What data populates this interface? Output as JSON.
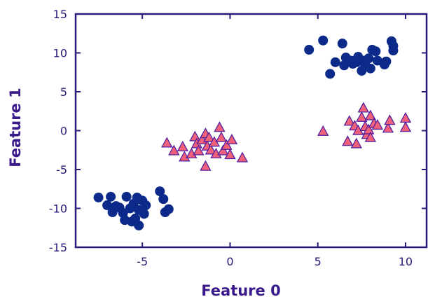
{
  "chart_data": {
    "type": "scatter",
    "title": "",
    "xlabel": "Feature 0",
    "ylabel": "Feature 1",
    "xlim": [
      -8.8,
      11.2
    ],
    "ylim": [
      -15,
      15
    ],
    "xticks": [
      -5,
      0,
      5,
      10
    ],
    "yticks": [
      -15,
      -10,
      -5,
      0,
      5,
      10,
      15
    ],
    "grid": false,
    "legend": "none",
    "series": [
      {
        "marker": "circle",
        "color": "#0b2a8a",
        "points": [
          [
            -7.5,
            -8.6
          ],
          [
            -7.0,
            -9.6
          ],
          [
            -6.8,
            -8.5
          ],
          [
            -6.7,
            -10.5
          ],
          [
            -6.5,
            -9.7
          ],
          [
            -6.3,
            -9.9
          ],
          [
            -6.1,
            -10.6
          ],
          [
            -6.0,
            -11.5
          ],
          [
            -5.9,
            -8.5
          ],
          [
            -5.7,
            -10.0
          ],
          [
            -5.6,
            -11.7
          ],
          [
            -5.5,
            -9.4
          ],
          [
            -5.4,
            -11.3
          ],
          [
            -5.3,
            -8.6
          ],
          [
            -5.2,
            -12.2
          ],
          [
            -5.2,
            -10.2
          ],
          [
            -5.0,
            -9.0
          ],
          [
            -4.9,
            -10.7
          ],
          [
            -4.8,
            -9.6
          ],
          [
            -4.0,
            -7.8
          ],
          [
            -3.8,
            -8.8
          ],
          [
            -3.7,
            -10.5
          ],
          [
            -3.5,
            -10.1
          ],
          [
            4.5,
            10.4
          ],
          [
            5.3,
            11.6
          ],
          [
            5.7,
            7.3
          ],
          [
            6.0,
            8.8
          ],
          [
            6.4,
            11.2
          ],
          [
            6.5,
            8.4
          ],
          [
            6.6,
            9.4
          ],
          [
            6.9,
            9.0
          ],
          [
            7.0,
            8.6
          ],
          [
            7.2,
            8.8
          ],
          [
            7.3,
            9.5
          ],
          [
            7.5,
            7.7
          ],
          [
            7.6,
            9.0
          ],
          [
            7.7,
            8.4
          ],
          [
            7.9,
            9.3
          ],
          [
            8.0,
            8.0
          ],
          [
            8.1,
            10.4
          ],
          [
            8.3,
            10.2
          ],
          [
            8.4,
            9.0
          ],
          [
            8.8,
            8.5
          ],
          [
            8.9,
            8.9
          ],
          [
            9.2,
            11.5
          ],
          [
            9.3,
            10.9
          ],
          [
            9.3,
            10.3
          ]
        ]
      },
      {
        "marker": "triangle",
        "color": "#f0607a",
        "stroke": "#4a1aa0",
        "points": [
          [
            -3.6,
            -1.6
          ],
          [
            -3.2,
            -2.6
          ],
          [
            -2.7,
            -2.1
          ],
          [
            -2.6,
            -3.4
          ],
          [
            -2.2,
            -3.0
          ],
          [
            -2.0,
            -0.8
          ],
          [
            -1.9,
            -1.7
          ],
          [
            -1.8,
            -2.6
          ],
          [
            -1.6,
            -1.2
          ],
          [
            -1.4,
            -0.4
          ],
          [
            -1.4,
            -4.6
          ],
          [
            -1.3,
            -2.0
          ],
          [
            -1.2,
            -0.9
          ],
          [
            -1.1,
            -2.5
          ],
          [
            -0.9,
            -1.5
          ],
          [
            -0.8,
            -3.0
          ],
          [
            -0.6,
            0.4
          ],
          [
            -0.5,
            -0.9
          ],
          [
            -0.4,
            -2.6
          ],
          [
            -0.2,
            -1.9
          ],
          [
            0.0,
            -3.1
          ],
          [
            0.1,
            -1.2
          ],
          [
            0.7,
            -3.5
          ],
          [
            5.3,
            -0.1
          ],
          [
            6.7,
            -1.4
          ],
          [
            6.8,
            1.2
          ],
          [
            7.1,
            0.6
          ],
          [
            7.2,
            -1.7
          ],
          [
            7.3,
            0.0
          ],
          [
            7.5,
            1.7
          ],
          [
            7.6,
            2.9
          ],
          [
            7.7,
            0.5
          ],
          [
            7.8,
            -0.5
          ],
          [
            7.9,
            0.1
          ],
          [
            8.0,
            1.9
          ],
          [
            8.0,
            -0.9
          ],
          [
            8.2,
            0.9
          ],
          [
            8.4,
            0.7
          ],
          [
            9.0,
            0.3
          ],
          [
            9.1,
            1.3
          ],
          [
            10.0,
            0.4
          ],
          [
            10.0,
            1.6
          ]
        ]
      }
    ]
  }
}
